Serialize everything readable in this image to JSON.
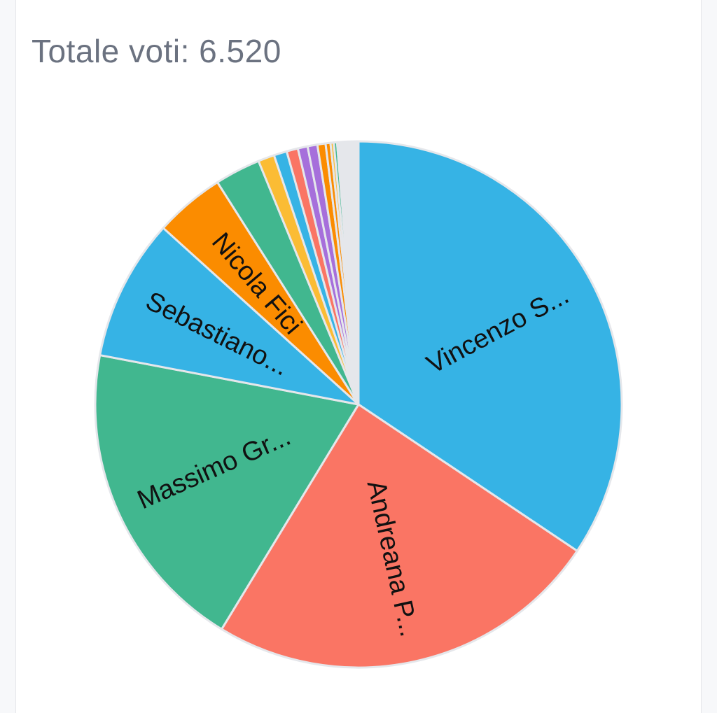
{
  "header": {
    "total_label": "Totale voti: 6.520"
  },
  "chart_data": {
    "type": "pie",
    "title": "",
    "start_angle_deg": 0,
    "slices": [
      {
        "label": "Vincenzo S...",
        "value": 34.4,
        "color": "#36b3e5",
        "show_label": true
      },
      {
        "label": "Andreana P...",
        "value": 24.3,
        "color": "#fa7564",
        "show_label": true
      },
      {
        "label": "Massimo Gr...",
        "value": 19.3,
        "color": "#41b78f",
        "show_label": true
      },
      {
        "label": "Sebastiano...",
        "value": 8.7,
        "color": "#36b3e5",
        "show_label": true
      },
      {
        "label": "Nicola Fici",
        "value": 4.3,
        "color": "#fb8c00",
        "show_label": true
      },
      {
        "label": "",
        "value": 2.8,
        "color": "#41b78f",
        "show_label": false
      },
      {
        "label": "",
        "value": 1.0,
        "color": "#fbbc34",
        "show_label": false
      },
      {
        "label": "",
        "value": 0.8,
        "color": "#36b3e5",
        "show_label": false
      },
      {
        "label": "",
        "value": 0.7,
        "color": "#fa7564",
        "show_label": false
      },
      {
        "label": "",
        "value": 0.6,
        "color": "#a66fdb",
        "show_label": false
      },
      {
        "label": "",
        "value": 0.6,
        "color": "#a66fdb",
        "show_label": false
      },
      {
        "label": "",
        "value": 0.5,
        "color": "#fb8c00",
        "show_label": false
      },
      {
        "label": "",
        "value": 0.3,
        "color": "#fb8c00",
        "show_label": false
      },
      {
        "label": "",
        "value": 0.2,
        "color": "#fbbc34",
        "show_label": false
      },
      {
        "label": "",
        "value": 0.2,
        "color": "#41b78f",
        "show_label": false
      },
      {
        "label": "",
        "value": 1.3,
        "color": "#e5e7eb",
        "show_label": false
      }
    ]
  }
}
